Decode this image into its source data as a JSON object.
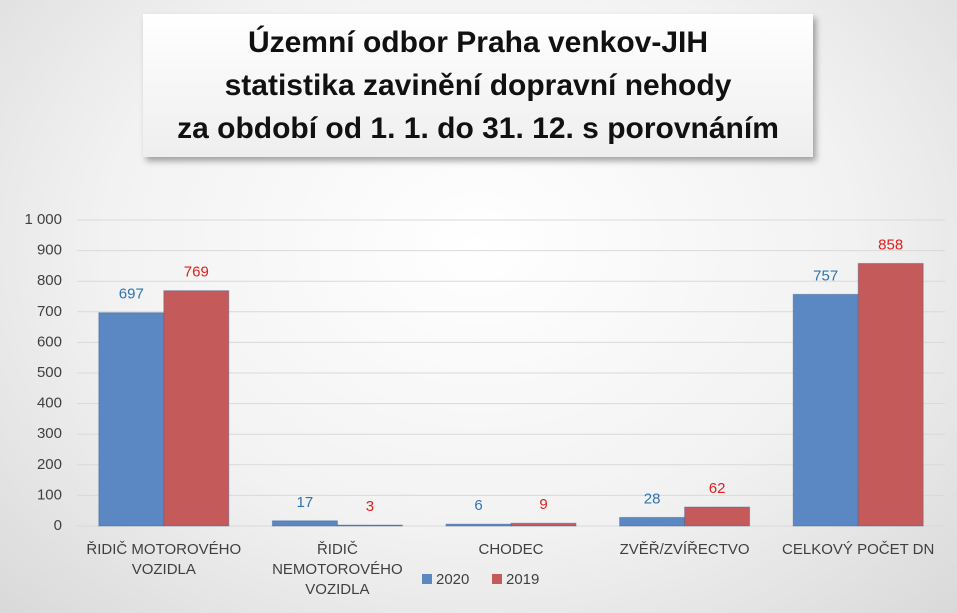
{
  "chart_data": {
    "type": "bar",
    "title": [
      "Územní odbor Praha venkov-JIH",
      "statistika zavinění dopravní nehody",
      "za období od 1. 1. do 31. 12. s porovnáním"
    ],
    "categories": [
      "ŘIDIČ MOTOROVÉHO VOZIDLA",
      "ŘIDIČ NEMOTOROVÉHO VOZIDLA",
      "CHODEC",
      "ZVĚŘ/ZVÍŘECTVO",
      "CELKOVÝ POČET DN"
    ],
    "series": [
      {
        "name": "2020",
        "color": "#5b87c2",
        "label_color": "#2e74b5",
        "values": [
          697,
          17,
          6,
          28,
          757
        ]
      },
      {
        "name": "2019",
        "color": "#c55a5a",
        "label_color": "#e0201c",
        "values": [
          769,
          3,
          9,
          62,
          858
        ]
      }
    ],
    "ylim": [
      0,
      1000
    ],
    "yticks": [
      0,
      100,
      200,
      300,
      400,
      500,
      600,
      700,
      800,
      900,
      {
        "value": 1000,
        "label": "1 000"
      }
    ],
    "grid": true,
    "legend": "bottom"
  }
}
